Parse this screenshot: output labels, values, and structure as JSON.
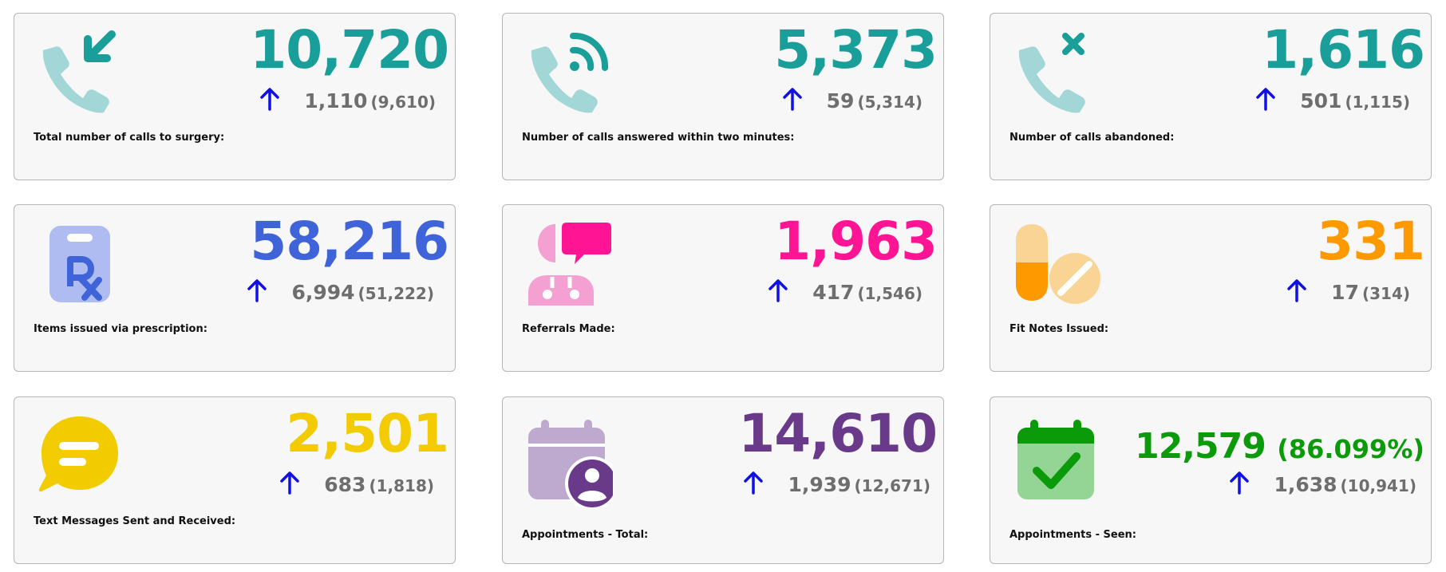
{
  "cards": [
    {
      "value": "10,720",
      "change": "1,110",
      "previous": "(9,610)",
      "label": "Total number of calls to surgery:",
      "icon": "phone-incoming-icon",
      "color": "#1a9e9a"
    },
    {
      "value": "5,373",
      "change": "59",
      "previous": "(5,314)",
      "label": "Number of calls answered within two minutes:",
      "icon": "phone-answered-icon",
      "color": "#1a9e9a"
    },
    {
      "value": "1,616",
      "change": "501",
      "previous": "(1,115)",
      "label": "Number of calls abandoned:",
      "icon": "phone-missed-icon",
      "color": "#1a9e9a"
    },
    {
      "value": "58,216",
      "change": "6,994",
      "previous": "(51,222)",
      "label": "Items issued via prescription:",
      "icon": "prescription-clipboard-icon",
      "color": "#3f63d8"
    },
    {
      "value": "1,963",
      "change": "417",
      "previous": "(1,546)",
      "label": "Referrals Made:",
      "icon": "doctor-referral-icon",
      "color": "#ff1493"
    },
    {
      "value": "331",
      "change": "17",
      "previous": "(314)",
      "label": "Fit Notes Issued:",
      "icon": "pills-icon",
      "color": "#ff9900"
    },
    {
      "value": "2,501",
      "change": "683",
      "previous": "(1,818)",
      "label": "Text Messages Sent and Received:",
      "icon": "chat-bubble-icon",
      "color": "#f2cc00"
    },
    {
      "value": "14,610",
      "change": "1,939",
      "previous": "(12,671)",
      "label": "Appointments - Total:",
      "icon": "calendar-user-icon",
      "color": "#6a3a8a"
    },
    {
      "value": "12,579",
      "value_percent": "(86.099%)",
      "change": "1,638",
      "previous": "(10,941)",
      "label": "Appointments - Seen:",
      "icon": "calendar-check-icon",
      "color": "#0a9a0a"
    }
  ],
  "colors": {
    "arrow": "#1010e0",
    "delta_text": "#6e6e6e",
    "card_bg": "#f7f7f7",
    "card_border": "#b5b5b5"
  }
}
